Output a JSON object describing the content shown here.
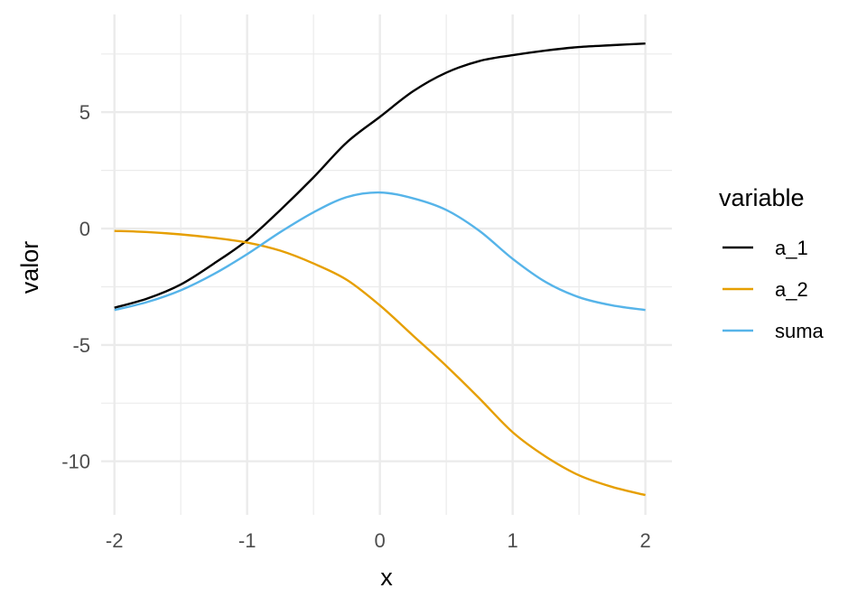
{
  "chart_data": {
    "type": "line",
    "title": "",
    "xlabel": "x",
    "ylabel": "valor",
    "xlim": [
      -2.1,
      2.2
    ],
    "ylim": [
      -12.3,
      9.2
    ],
    "x_ticks": [
      -2,
      -1,
      0,
      1,
      2
    ],
    "x_tick_labels": [
      "-2",
      "-1",
      "0",
      "1",
      "2"
    ],
    "y_ticks": [
      -10,
      -5,
      0,
      5
    ],
    "y_tick_labels": [
      "-10",
      "-5",
      "0",
      "5"
    ],
    "grid": true,
    "legend": {
      "title": "variable",
      "placement": "right"
    },
    "x": [
      -2,
      -1.75,
      -1.5,
      -1.25,
      -1,
      -0.75,
      -0.5,
      -0.25,
      0,
      0.25,
      0.5,
      0.75,
      1,
      1.25,
      1.5,
      1.75,
      2
    ],
    "series": [
      {
        "name": "a_1",
        "color": "#000000",
        "values": [
          -3.4,
          -3.0,
          -2.4,
          -1.5,
          -0.5,
          0.8,
          2.2,
          3.7,
          4.8,
          5.9,
          6.7,
          7.2,
          7.45,
          7.65,
          7.8,
          7.88,
          7.95
        ]
      },
      {
        "name": "a_2",
        "color": "#E69F00",
        "values": [
          -0.1,
          -0.15,
          -0.25,
          -0.4,
          -0.6,
          -0.95,
          -1.5,
          -2.2,
          -3.3,
          -4.6,
          -5.9,
          -7.3,
          -8.75,
          -9.8,
          -10.6,
          -11.1,
          -11.45
        ]
      },
      {
        "name": "suma",
        "color": "#56B4E9",
        "values": [
          -3.5,
          -3.15,
          -2.65,
          -1.95,
          -1.1,
          -0.15,
          0.7,
          1.35,
          1.55,
          1.3,
          0.8,
          -0.1,
          -1.3,
          -2.3,
          -2.95,
          -3.3,
          -3.5
        ]
      }
    ]
  }
}
